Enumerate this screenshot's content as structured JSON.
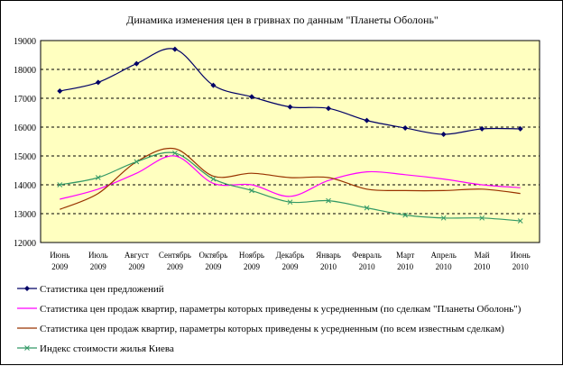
{
  "chart_data": {
    "type": "line",
    "title": "Динамика изменения цен в гривнах по данным \"Планеты Оболонь\"",
    "xlabel": "",
    "ylabel": "",
    "ylim": [
      12000,
      19000
    ],
    "yticks": [
      12000,
      13000,
      14000,
      15000,
      16000,
      17000,
      18000,
      19000
    ],
    "grid": "horizontal dashed",
    "legend_position": "bottom",
    "categories": [
      [
        "Июнь",
        "2009"
      ],
      [
        "Июль",
        "2009"
      ],
      [
        "Август",
        "2009"
      ],
      [
        "Сентябрь",
        "2009"
      ],
      [
        "Октябрь",
        "2009"
      ],
      [
        "Ноябрь",
        "2009"
      ],
      [
        "Декабрь",
        "2009"
      ],
      [
        "Январь",
        "2010"
      ],
      [
        "Февраль",
        "2010"
      ],
      [
        "Март",
        "2010"
      ],
      [
        "Апрель",
        "2010"
      ],
      [
        "Май",
        "2010"
      ],
      [
        "Июнь",
        "2010"
      ]
    ],
    "series": [
      {
        "name": "Статистика цен  предложений",
        "color": "#000066",
        "marker": "diamond",
        "values": [
          17250,
          17550,
          18200,
          18700,
          17450,
          17050,
          16700,
          16650,
          16230,
          15970,
          15750,
          15940,
          15940
        ]
      },
      {
        "name": "Статистика цен продаж квартир, параметры которых приведены к усредненным (по сделкам \"Планеты Оболонь\")",
        "color": "#ff00ff",
        "marker": "none",
        "values": [
          13500,
          13850,
          14400,
          15000,
          14050,
          14000,
          13600,
          14150,
          14450,
          14350,
          14200,
          14000,
          13900
        ]
      },
      {
        "name": "Статистика цен продаж квартир, параметры которых приведены к усредненным (по всем известным сделкам)",
        "color": "#993300",
        "marker": "none",
        "values": [
          13150,
          13700,
          14800,
          15250,
          14300,
          14400,
          14250,
          14250,
          13850,
          13800,
          13800,
          13850,
          13700
        ]
      },
      {
        "name": "Индекс стоимости жилья Киева",
        "color": "#339966",
        "marker": "x",
        "values": [
          14000,
          14250,
          14800,
          15100,
          14200,
          13800,
          13400,
          13450,
          13200,
          12950,
          12850,
          12850,
          12750
        ]
      }
    ]
  }
}
